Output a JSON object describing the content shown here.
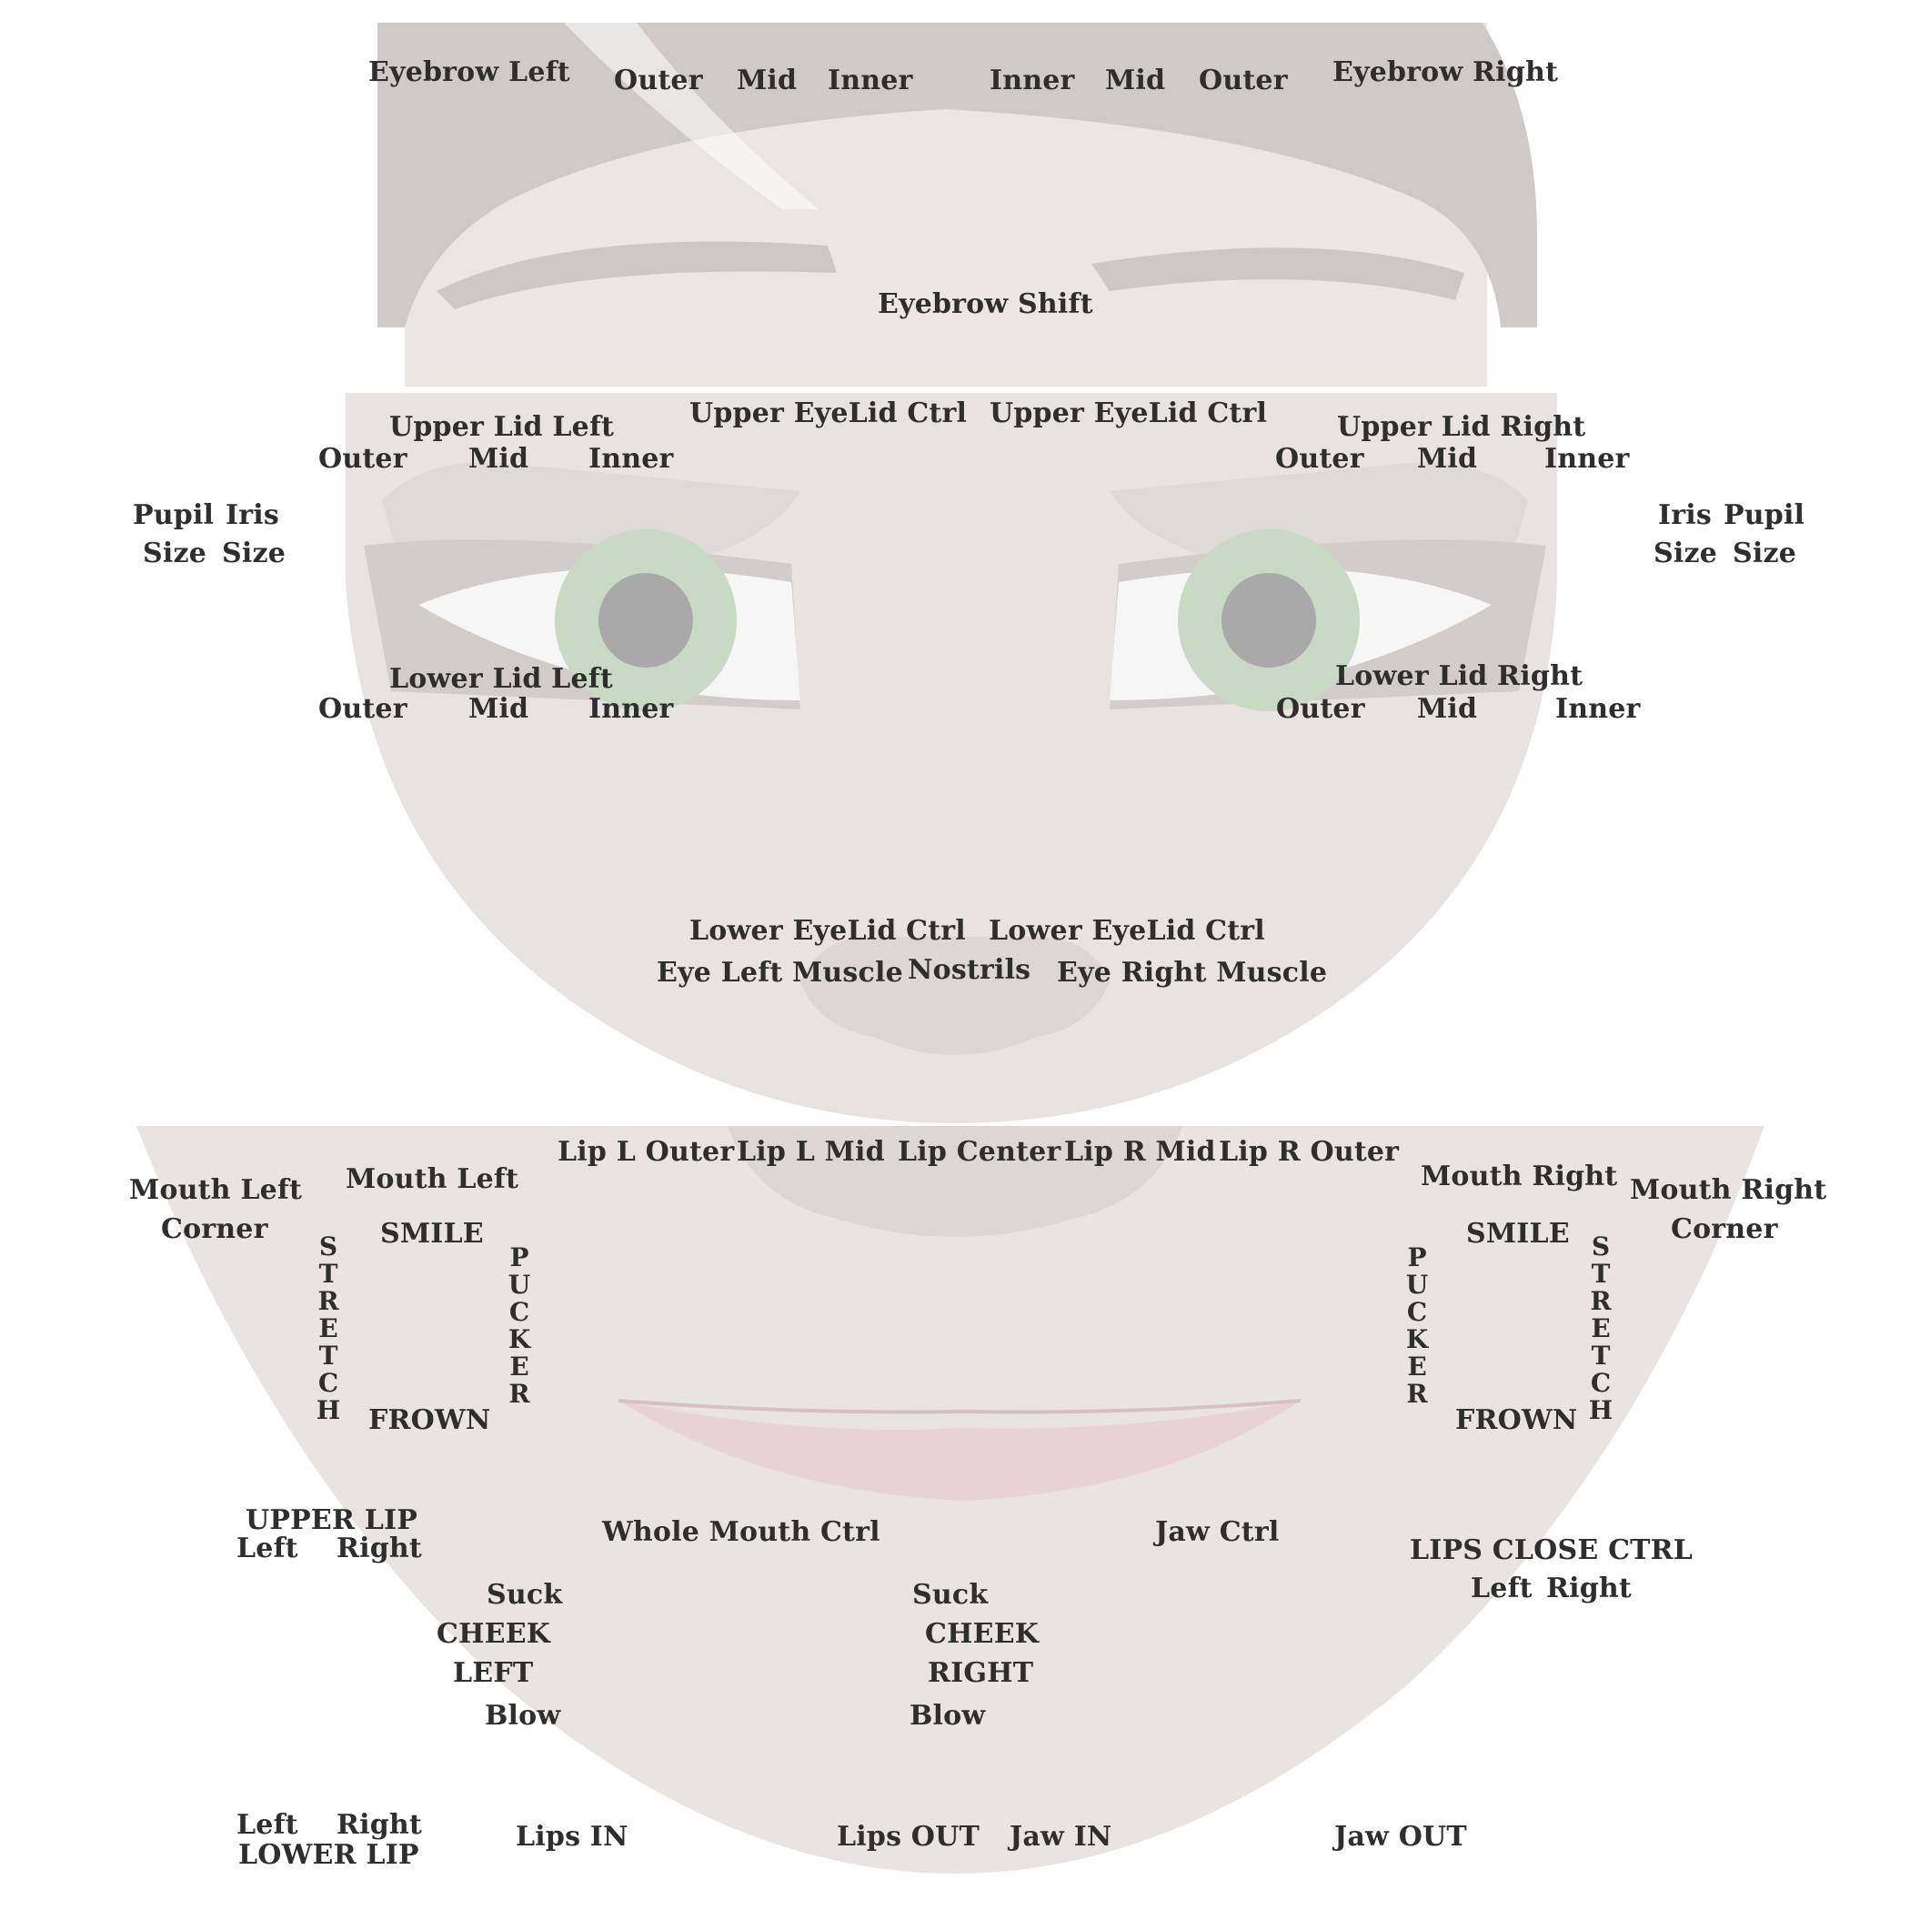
{
  "colors": {
    "label": "#2e2e2e",
    "skin": "#e7e2df",
    "hair": "#c9c4c1",
    "iris": "#c6d9c3",
    "pupil": "#a9a9a9",
    "lips": "#e6d2d3"
  },
  "labels": {
    "eyebrow_left": "Eyebrow Left",
    "brow_l_outer": "Outer",
    "brow_l_mid": "Mid",
    "brow_l_inner": "Inner",
    "brow_r_inner": "Inner",
    "brow_r_mid": "Mid",
    "brow_r_outer": "Outer",
    "eyebrow_right": "Eyebrow Right",
    "eyebrow_shift": "Eyebrow Shift",
    "upper_lid_left": "Upper Lid Left",
    "upper_eyelid_ctrl_l": "Upper EyeLid Ctrl",
    "upper_eyelid_ctrl_r": "Upper EyeLid Ctrl",
    "upper_lid_right": "Upper Lid Right",
    "ul_l_outer": "Outer",
    "ul_l_mid": "Mid",
    "ul_l_inner": "Inner",
    "ul_r_outer": "Outer",
    "ul_r_mid": "Mid",
    "ul_r_inner": "Inner",
    "pupil_l": "Pupil",
    "iris_l": "Iris",
    "size_l1": "Size",
    "size_l2": "Size",
    "iris_r": "Iris",
    "pupil_r": "Pupil",
    "size_r1": "Size",
    "size_r2": "Size",
    "lower_lid_left": "Lower Lid Left",
    "lower_lid_right": "Lower Lid Right",
    "ll_l_outer": "Outer",
    "ll_l_mid": "Mid",
    "ll_l_inner": "Inner",
    "ll_r_outer": "Outer",
    "ll_r_mid": "Mid",
    "ll_r_inner": "Inner",
    "lower_eyelid_ctrl_l": "Lower EyeLid Ctrl",
    "lower_eyelid_ctrl_r": "Lower EyeLid Ctrl",
    "eye_left_muscle": "Eye Left Muscle",
    "nostrils": "Nostrils",
    "eye_right_muscle": "Eye Right Muscle",
    "lip_l_outer": "Lip L Outer",
    "lip_l_mid": "Lip L Mid",
    "lip_center": "Lip Center",
    "lip_r_mid": "Lip R Mid",
    "lip_r_outer": "Lip R Outer",
    "mouth_left_corner_1": "Mouth Left",
    "mouth_left_corner_2": "Corner",
    "mouth_left": "Mouth Left",
    "smile_l": "SMILE",
    "stretch_l": "STRETCH",
    "pucker_l": "PUCKER",
    "frown_l": "FROWN",
    "mouth_right": "Mouth Right",
    "mouth_right_corner_1": "Mouth Right",
    "mouth_right_corner_2": "Corner",
    "smile_r": "SMILE",
    "pucker_r": "PUCKER",
    "stretch_r": "STRETCH",
    "frown_r": "FROWN",
    "upper_lip": "UPPER LIP",
    "upper_lip_left": "Left",
    "upper_lip_right": "Right",
    "whole_mouth_ctrl": "Whole Mouth Ctrl",
    "jaw_ctrl": "Jaw Ctrl",
    "lips_close_ctrl": "LIPS CLOSE CTRL",
    "lips_close_left": "Left",
    "lips_close_right": "Right",
    "suck_l": "Suck",
    "cheek_l": "CHEEK",
    "left_l": "LEFT",
    "blow_l": "Blow",
    "suck_r": "Suck",
    "cheek_r": "CHEEK",
    "right_r": "RIGHT",
    "blow_r": "Blow",
    "lower_lip_left": "Left",
    "lower_lip_right": "Right",
    "lower_lip": "LOWER LIP",
    "lips_in": "Lips IN",
    "lips_out": "Lips OUT",
    "jaw_in": "Jaw IN",
    "jaw_out": "Jaw OUT"
  }
}
